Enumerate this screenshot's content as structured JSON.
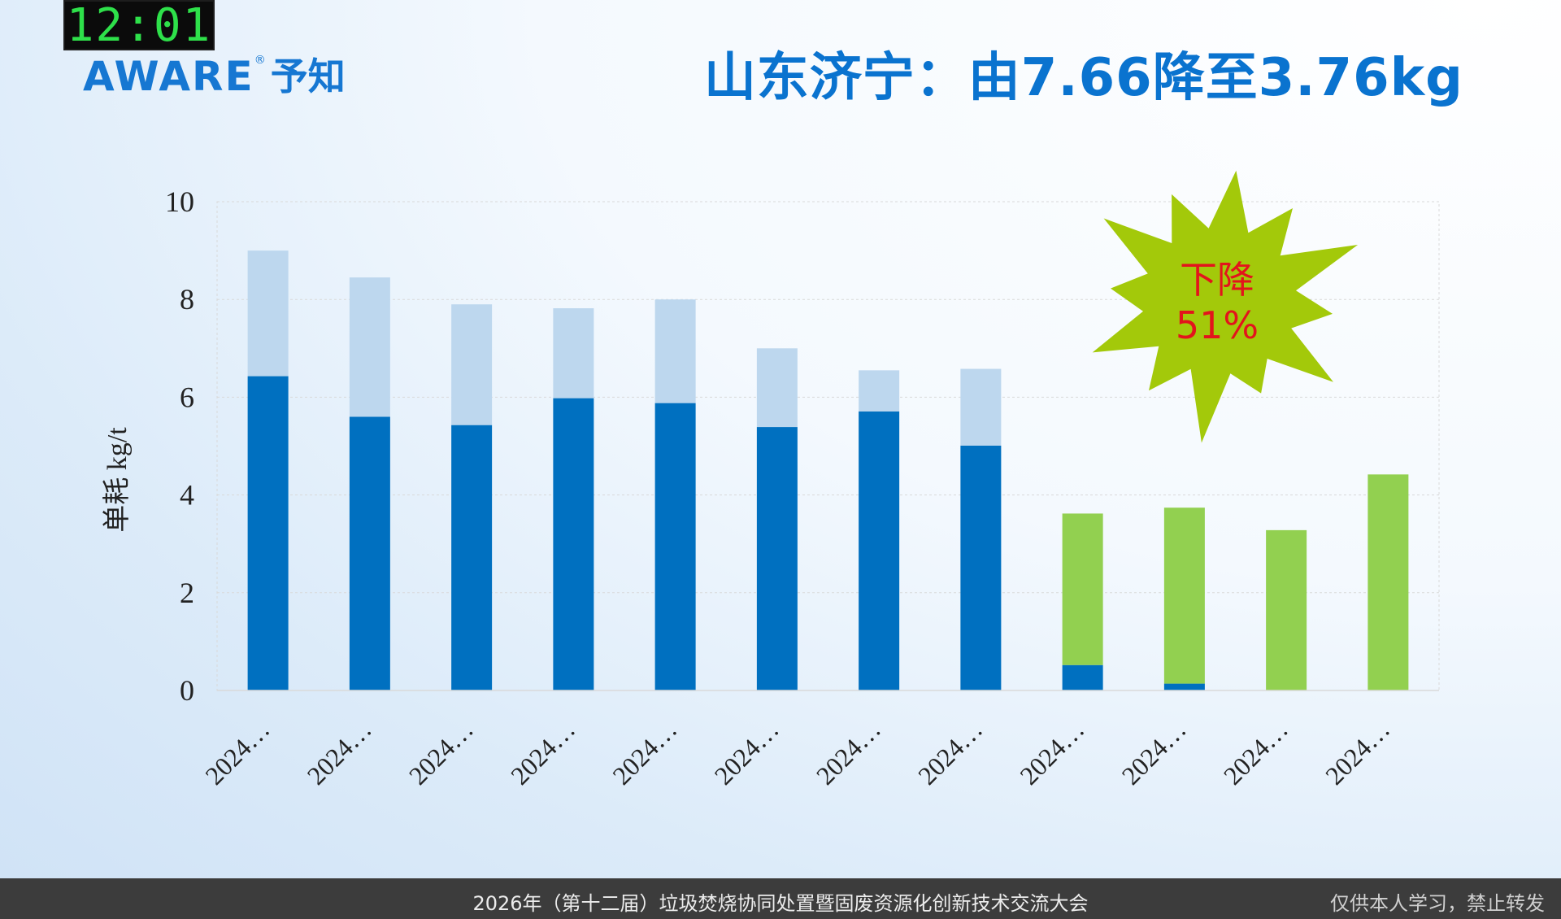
{
  "clock": "12:01",
  "logo": {
    "brand": "AWARE",
    "reg": "®",
    "cn": "予知"
  },
  "title": "山东济宁：由7.66降至3.76kg",
  "badge": {
    "line1": "下降",
    "line2": "51%",
    "fill": "#a3c90a",
    "text_color": "#e3141c"
  },
  "footer": {
    "center": "2026年（第十二届）垃圾焚烧协同处置暨固废资源化创新技术交流大会",
    "right": "仅供本人学习，禁止转发"
  },
  "colors": {
    "dark_blue": "#0070c0",
    "light_blue": "#bdd7ee",
    "green": "#92d050"
  },
  "chart_data": {
    "type": "bar",
    "stacked": true,
    "ylabel": "单耗 kg/t",
    "ylim": [
      0,
      10
    ],
    "yticks": [
      0,
      2,
      4,
      6,
      8,
      10
    ],
    "grid": true,
    "categories": [
      "2024…",
      "2024…",
      "2024…",
      "2024…",
      "2024…",
      "2024…",
      "2024…",
      "2024…",
      "2024…",
      "2024…",
      "2024…",
      "2024…"
    ],
    "series": [
      {
        "color": "#0070c0",
        "values": [
          6.43,
          5.6,
          5.43,
          5.98,
          5.88,
          5.39,
          5.71,
          5.01,
          0.52,
          0.14,
          0,
          0
        ]
      },
      {
        "color": "#bdd7ee",
        "values": [
          2.57,
          2.85,
          2.47,
          1.84,
          2.12,
          1.61,
          0.84,
          1.57,
          0,
          0,
          0,
          0
        ]
      },
      {
        "color": "#92d050",
        "values": [
          0,
          0,
          0,
          0,
          0,
          0,
          0,
          0,
          3.1,
          3.6,
          3.28,
          4.42
        ]
      }
    ]
  }
}
